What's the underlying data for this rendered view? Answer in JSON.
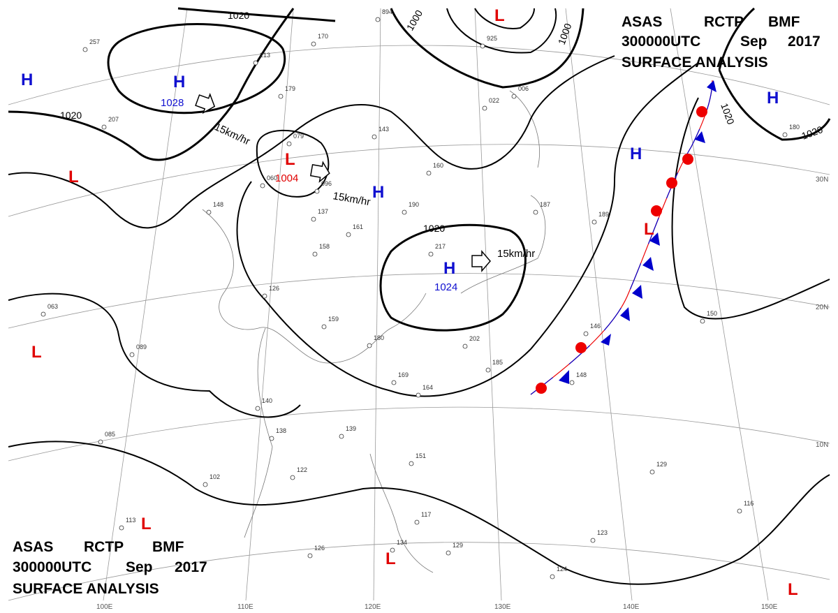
{
  "header_top": {
    "agency": "ASAS",
    "station": "RCTP",
    "code": "BMF",
    "time": "300000UTC",
    "month": "Sep",
    "year": "2017",
    "product": "SURFACE ANALYSIS"
  },
  "header_bottom": {
    "agency": "ASAS",
    "station": "RCTP",
    "code": "BMF",
    "time": "300000UTC",
    "month": "Sep",
    "year": "2017",
    "product": "SURFACE ANALYSIS"
  },
  "centers": [
    {
      "symbol": "H",
      "pressure": "1028"
    },
    {
      "symbol": "L",
      "pressure": "1004"
    },
    {
      "symbol": "H",
      "pressure": "1024"
    },
    {
      "symbol": "H"
    },
    {
      "symbol": "H"
    },
    {
      "symbol": "H"
    },
    {
      "symbol": "H"
    },
    {
      "symbol": "L"
    },
    {
      "symbol": "L"
    },
    {
      "symbol": "L"
    },
    {
      "symbol": "L"
    },
    {
      "symbol": "L"
    },
    {
      "symbol": "L"
    },
    {
      "symbol": "L"
    }
  ],
  "isobar_labels": [
    "1020",
    "1020",
    "1000",
    "1000",
    "1020",
    "1020",
    "1020"
  ],
  "motions": [
    "15km/hr",
    "15km/hr",
    "15km/hr"
  ],
  "longitudes": [
    "100E",
    "110E",
    "120E",
    "130E",
    "140E",
    "150E"
  ],
  "latitudes": [
    "30N",
    "20N",
    "10N"
  ],
  "stations": [
    "257",
    "213",
    "170",
    "179",
    "207",
    "079",
    "143",
    "160",
    "022",
    "006",
    "060",
    "096",
    "137",
    "148",
    "161",
    "190",
    "217",
    "187",
    "189",
    "158",
    "126",
    "159",
    "180",
    "202",
    "185",
    "169",
    "164",
    "140",
    "138",
    "139",
    "151",
    "122",
    "102",
    "113",
    "126",
    "134",
    "129",
    "117",
    "124",
    "123",
    "129",
    "116",
    "146",
    "148",
    "150",
    "089",
    "085",
    "063",
    "894",
    "925",
    "180"
  ]
}
